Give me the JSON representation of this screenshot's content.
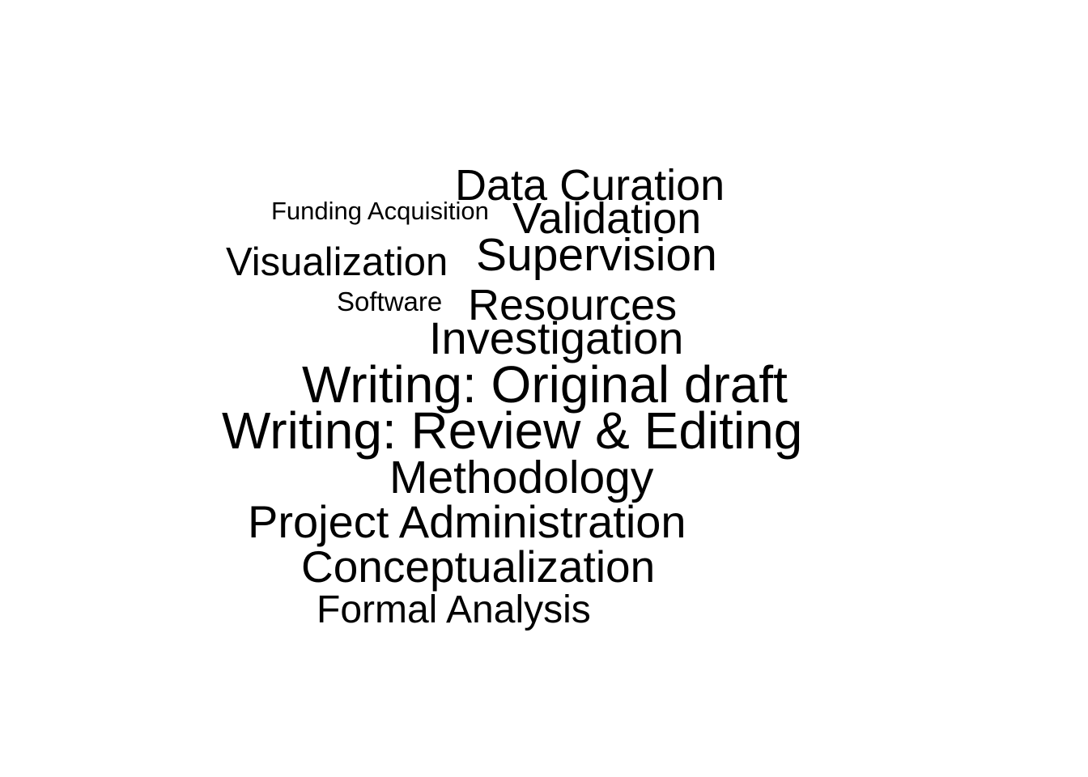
{
  "word_cloud": {
    "background": "#ffffff",
    "text_color": "#000000",
    "words": [
      {
        "id": "data_curation",
        "text": "Data Curation"
      },
      {
        "id": "funding_acquisition",
        "text": "Funding Acquisition"
      },
      {
        "id": "validation",
        "text": "Validation"
      },
      {
        "id": "visualization",
        "text": "Visualization"
      },
      {
        "id": "supervision",
        "text": "Supervision"
      },
      {
        "id": "software",
        "text": "Software"
      },
      {
        "id": "resources",
        "text": "Resources"
      },
      {
        "id": "investigation",
        "text": "Investigation"
      },
      {
        "id": "writing_original",
        "text": "Writing: Original draft"
      },
      {
        "id": "writing_review",
        "text": "Writing: Review & Editing"
      },
      {
        "id": "methodology",
        "text": "Methodology"
      },
      {
        "id": "project_administration",
        "text": "Project Administration"
      },
      {
        "id": "conceptualization",
        "text": "Conceptualization"
      },
      {
        "id": "formal_analysis",
        "text": "Formal Analysis"
      }
    ]
  }
}
